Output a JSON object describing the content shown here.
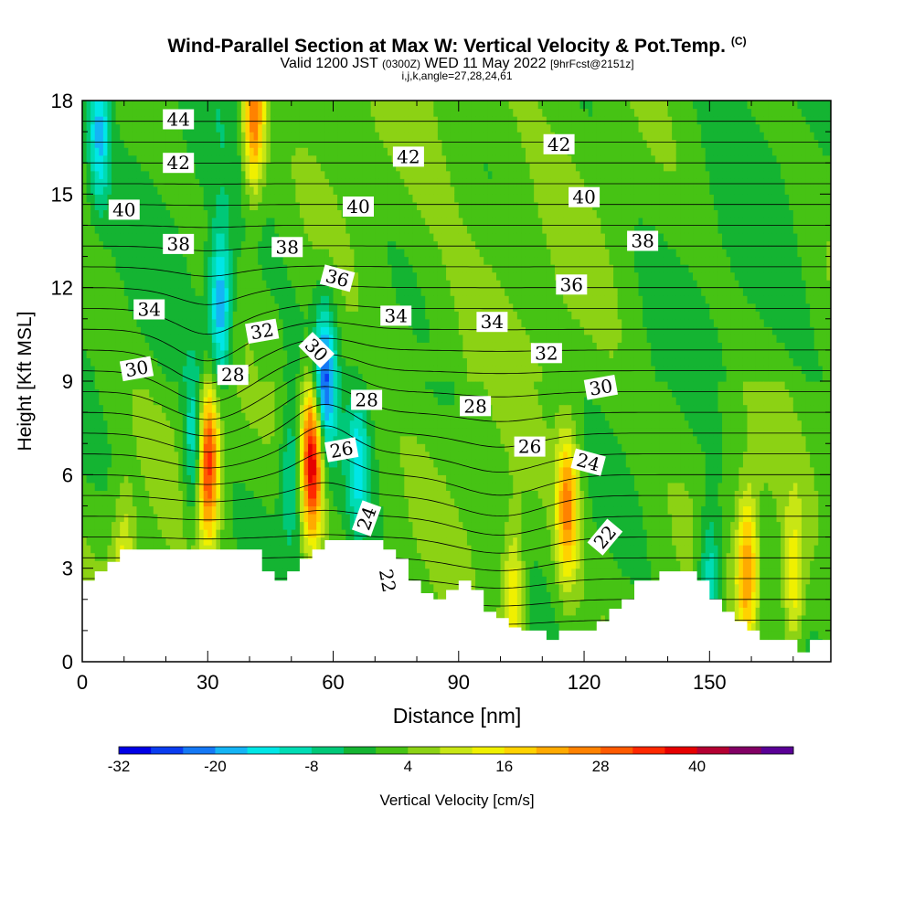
{
  "header": {
    "title": "Wind-Parallel Section at Max W: Vertical Velocity & Pot.Temp.",
    "copyright": "(C)",
    "valid_prefix": "Valid 1200 JST",
    "valid_utc": "(0300Z)",
    "valid_date": "WED 11 May 2022",
    "forecast": "[9hrFcst@2151z]",
    "indices": "i,j,k,angle=27,28,24,61"
  },
  "chart_data": {
    "type": "heatmap",
    "title": "Wind-Parallel Section at Max W: Vertical Velocity & Pot.Temp.",
    "xlabel": "Distance [nm]",
    "ylabel": "Height [Kft MSL]",
    "xlim": [
      0,
      179
    ],
    "ylim": [
      0,
      18
    ],
    "x_ticks": [
      "0",
      "30",
      "60",
      "90",
      "120",
      "150"
    ],
    "y_ticks": [
      "0",
      "3",
      "6",
      "9",
      "12",
      "15",
      "18"
    ],
    "colorbar": {
      "label": "Vertical Velocity [cm/s]",
      "tick_labels": [
        "-32",
        "-20",
        "-8",
        "4",
        "16",
        "28",
        "40"
      ],
      "levels": [
        -32,
        -28,
        -24,
        -20,
        -16,
        -12,
        -8,
        -4,
        0,
        4,
        8,
        12,
        16,
        20,
        24,
        28,
        32,
        36,
        40,
        44,
        48
      ],
      "colors": [
        "#0000e6",
        "#0a3cf0",
        "#1478f5",
        "#14b4f5",
        "#00e6e6",
        "#00dcb4",
        "#00c878",
        "#14b432",
        "#46c314",
        "#8cd214",
        "#c8e614",
        "#f0f000",
        "#ffd200",
        "#ffaa00",
        "#ff8200",
        "#ff5a00",
        "#ff2800",
        "#e60000",
        "#b40032",
        "#820064",
        "#5a0096"
      ]
    },
    "terrain": [
      [
        0,
        2.6
      ],
      [
        3,
        2.6
      ],
      [
        3,
        2.9
      ],
      [
        6,
        2.9
      ],
      [
        6,
        3.2
      ],
      [
        9,
        3.2
      ],
      [
        9,
        3.6
      ],
      [
        43,
        3.6
      ],
      [
        43,
        2.9
      ],
      [
        46,
        2.9
      ],
      [
        46,
        2.6
      ],
      [
        49,
        2.6
      ],
      [
        49,
        2.9
      ],
      [
        52,
        2.9
      ],
      [
        52,
        3.3
      ],
      [
        55,
        3.3
      ],
      [
        55,
        3.6
      ],
      [
        58,
        3.6
      ],
      [
        58,
        3.9
      ],
      [
        72,
        3.9
      ],
      [
        72,
        3.6
      ],
      [
        75,
        3.6
      ],
      [
        75,
        3.3
      ],
      [
        78,
        3.3
      ],
      [
        78,
        2.6
      ],
      [
        81,
        2.6
      ],
      [
        81,
        2.2
      ],
      [
        84,
        2.2
      ],
      [
        84,
        2.0
      ],
      [
        87,
        2.0
      ],
      [
        87,
        2.3
      ],
      [
        90,
        2.3
      ],
      [
        90,
        2.6
      ],
      [
        93,
        2.6
      ],
      [
        93,
        2.3
      ],
      [
        96,
        2.3
      ],
      [
        96,
        1.6
      ],
      [
        99,
        1.6
      ],
      [
        99,
        1.4
      ],
      [
        102,
        1.4
      ],
      [
        102,
        1.1
      ],
      [
        105,
        1.1
      ],
      [
        105,
        1.0
      ],
      [
        111,
        1.0
      ],
      [
        111,
        0.7
      ],
      [
        114,
        0.7
      ],
      [
        114,
        1.0
      ],
      [
        123,
        1.0
      ],
      [
        123,
        1.3
      ],
      [
        126,
        1.3
      ],
      [
        126,
        1.7
      ],
      [
        129,
        1.7
      ],
      [
        129,
        2.0
      ],
      [
        132,
        2.0
      ],
      [
        132,
        2.6
      ],
      [
        138,
        2.6
      ],
      [
        138,
        2.9
      ],
      [
        147,
        2.9
      ],
      [
        147,
        2.6
      ],
      [
        150,
        2.6
      ],
      [
        150,
        2.0
      ],
      [
        153,
        2.0
      ],
      [
        153,
        1.6
      ],
      [
        156,
        1.6
      ],
      [
        156,
        1.3
      ],
      [
        159,
        1.3
      ],
      [
        159,
        1.0
      ],
      [
        162,
        1.0
      ],
      [
        162,
        0.7
      ],
      [
        171,
        0.7
      ],
      [
        171,
        0.3
      ],
      [
        174,
        0.3
      ],
      [
        174,
        0.7
      ],
      [
        179,
        0.7
      ]
    ],
    "updrafts": [
      {
        "x": 30,
        "y": 6.5,
        "peak": 36
      },
      {
        "x": 55,
        "y": 6.5,
        "peak": 40
      },
      {
        "x": 41,
        "y": 17.5,
        "peak": 28
      },
      {
        "x": 116,
        "y": 5.0,
        "peak": 24
      },
      {
        "x": 159,
        "y": 3.0,
        "peak": 22
      },
      {
        "x": 103,
        "y": 2.0,
        "peak": 16
      },
      {
        "x": 10,
        "y": 3.0,
        "peak": 12
      },
      {
        "x": 170,
        "y": 2.5,
        "peak": 14
      }
    ],
    "downdrafts": [
      {
        "x": 27,
        "y": 7.0,
        "peak": -18
      },
      {
        "x": 33,
        "y": 11.5,
        "peak": -22
      },
      {
        "x": 58,
        "y": 9.0,
        "peak": -26
      },
      {
        "x": 66,
        "y": 6.3,
        "peak": -14
      },
      {
        "x": 150,
        "y": 2.5,
        "peak": -16
      },
      {
        "x": 4,
        "y": 17.0,
        "peak": -18
      },
      {
        "x": 50,
        "y": 6.0,
        "peak": -12
      }
    ],
    "isentrope_labels": [
      {
        "value": "44",
        "x": 23,
        "y": 17.4,
        "angle": 0
      },
      {
        "value": "42",
        "x": 23,
        "y": 16.0,
        "angle": 0
      },
      {
        "value": "42",
        "x": 78,
        "y": 16.2,
        "angle": 0
      },
      {
        "value": "42",
        "x": 114,
        "y": 16.6,
        "angle": 0
      },
      {
        "value": "40",
        "x": 10,
        "y": 14.5,
        "angle": 0
      },
      {
        "value": "40",
        "x": 66,
        "y": 14.6,
        "angle": 0
      },
      {
        "value": "40",
        "x": 120,
        "y": 14.9,
        "angle": 0
      },
      {
        "value": "38",
        "x": 23,
        "y": 13.4,
        "angle": 0
      },
      {
        "value": "38",
        "x": 49,
        "y": 13.3,
        "angle": 0
      },
      {
        "value": "38",
        "x": 134,
        "y": 13.5,
        "angle": 0
      },
      {
        "value": "36",
        "x": 61,
        "y": 12.3,
        "angle": 15
      },
      {
        "value": "36",
        "x": 117,
        "y": 12.1,
        "angle": 0
      },
      {
        "value": "34",
        "x": 16,
        "y": 11.3,
        "angle": 0
      },
      {
        "value": "34",
        "x": 75,
        "y": 11.1,
        "angle": 0
      },
      {
        "value": "34",
        "x": 98,
        "y": 10.9,
        "angle": 0
      },
      {
        "value": "32",
        "x": 43,
        "y": 10.6,
        "angle": -10
      },
      {
        "value": "32",
        "x": 111,
        "y": 9.9,
        "angle": 0
      },
      {
        "value": "30",
        "x": 13,
        "y": 9.4,
        "angle": -10
      },
      {
        "value": "30",
        "x": 56,
        "y": 10.0,
        "angle": 45
      },
      {
        "value": "30",
        "x": 124,
        "y": 8.8,
        "angle": -10
      },
      {
        "value": "28",
        "x": 36,
        "y": 9.2,
        "angle": 0
      },
      {
        "value": "28",
        "x": 68,
        "y": 8.4,
        "angle": 0
      },
      {
        "value": "28",
        "x": 94,
        "y": 8.2,
        "angle": 0
      },
      {
        "value": "26",
        "x": 62,
        "y": 6.8,
        "angle": -10
      },
      {
        "value": "26",
        "x": 107,
        "y": 6.9,
        "angle": 0
      },
      {
        "value": "24",
        "x": 68,
        "y": 4.6,
        "angle": -70
      },
      {
        "value": "24",
        "x": 121,
        "y": 6.4,
        "angle": 15
      },
      {
        "value": "22",
        "x": 73,
        "y": 2.6,
        "angle": 80
      },
      {
        "value": "22",
        "x": 125,
        "y": 4.0,
        "angle": -50
      }
    ],
    "isentrope_levels": [
      22,
      23,
      24,
      25,
      26,
      27,
      28,
      29,
      30,
      31,
      32,
      33,
      34,
      35,
      36,
      37,
      38,
      39,
      40,
      41,
      42,
      43,
      44,
      45,
      46
    ]
  }
}
